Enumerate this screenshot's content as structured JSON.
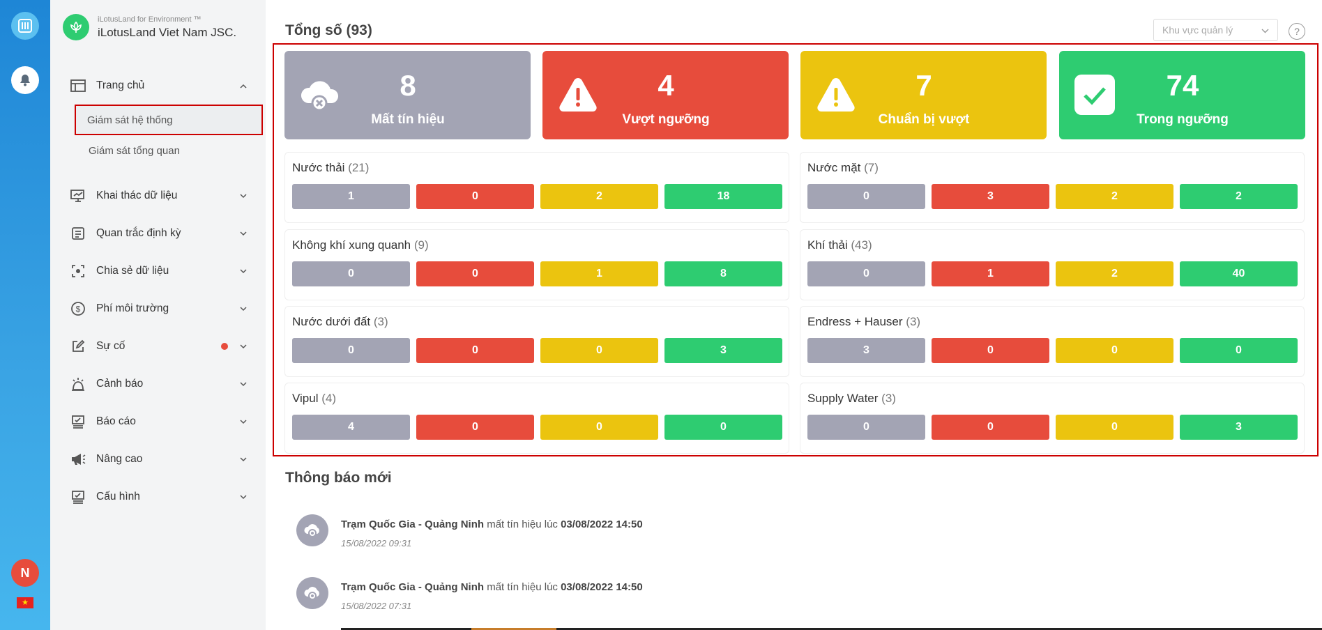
{
  "brand": {
    "sub": "iLotusLand for Environment ™",
    "name": "iLotusLand Viet Nam JSC."
  },
  "user": {
    "initial": "N"
  },
  "sidebar": {
    "items": [
      {
        "label": "Trang chủ",
        "icon": "home-layout-icon",
        "expanded": true,
        "children": [
          {
            "label": "Giám sát hệ thống",
            "active": true
          },
          {
            "label": "Giám sát tổng quan",
            "active": false
          }
        ]
      },
      {
        "label": "Khai thác dữ liệu",
        "icon": "monitor-chart-icon"
      },
      {
        "label": "Quan trắc định kỳ",
        "icon": "document-icon"
      },
      {
        "label": "Chia sẻ dữ liệu",
        "icon": "share-frame-icon"
      },
      {
        "label": "Phí môi trường",
        "icon": "dollar-icon"
      },
      {
        "label": "Sự cố",
        "icon": "edit-icon",
        "badge": true
      },
      {
        "label": "Cảnh báo",
        "icon": "alarm-icon"
      },
      {
        "label": "Báo cáo",
        "icon": "report-icon"
      },
      {
        "label": "Nâng cao",
        "icon": "megaphone-icon"
      },
      {
        "label": "Cấu hình",
        "icon": "config-icon"
      }
    ]
  },
  "main": {
    "title": "Tổng số (93)",
    "region_placeholder": "Khu vực quản lý",
    "help": "?",
    "stats": [
      {
        "value": "8",
        "label": "Mất tín hiệu",
        "color": "#a3a4b4",
        "icon": "cloud-x-icon"
      },
      {
        "value": "4",
        "label": "Vượt ngưỡng",
        "color": "#e74c3c",
        "icon": "warning-icon"
      },
      {
        "value": "7",
        "label": "Chuẩn bị vượt",
        "color": "#ebc40f",
        "icon": "warning-icon"
      },
      {
        "value": "74",
        "label": "Trong ngưỡng",
        "color": "#2ecc71",
        "icon": "check-icon"
      }
    ],
    "cards": [
      {
        "name": "Nước thải",
        "count": "(21)",
        "values": [
          "1",
          "0",
          "2",
          "18"
        ]
      },
      {
        "name": "Nước mặt",
        "count": "(7)",
        "values": [
          "0",
          "3",
          "2",
          "2"
        ]
      },
      {
        "name": "Không khí xung quanh",
        "count": "(9)",
        "values": [
          "0",
          "0",
          "1",
          "8"
        ]
      },
      {
        "name": "Khí thải",
        "count": "(43)",
        "values": [
          "0",
          "1",
          "2",
          "40"
        ]
      },
      {
        "name": "Nước dưới đất",
        "count": "(3)",
        "values": [
          "0",
          "0",
          "0",
          "3"
        ]
      },
      {
        "name": "Endress + Hauser",
        "count": "(3)",
        "values": [
          "3",
          "0",
          "0",
          "0"
        ]
      },
      {
        "name": "Vipul",
        "count": "(4)",
        "values": [
          "4",
          "0",
          "0",
          "0"
        ]
      },
      {
        "name": "Supply Water",
        "count": "(3)",
        "values": [
          "0",
          "0",
          "0",
          "3"
        ]
      }
    ],
    "notifications_title": "Thông báo mới",
    "notifications": [
      {
        "station": "Trạm Quốc Gia - Quảng Ninh",
        "message": "mất tín hiệu lúc",
        "at": "03/08/2022 14:50",
        "time": "15/08/2022 09:31"
      },
      {
        "station": "Trạm Quốc Gia - Quảng Ninh",
        "message": "mất tín hiệu lúc",
        "at": "03/08/2022 14:50",
        "time": "15/08/2022 07:31"
      }
    ]
  }
}
